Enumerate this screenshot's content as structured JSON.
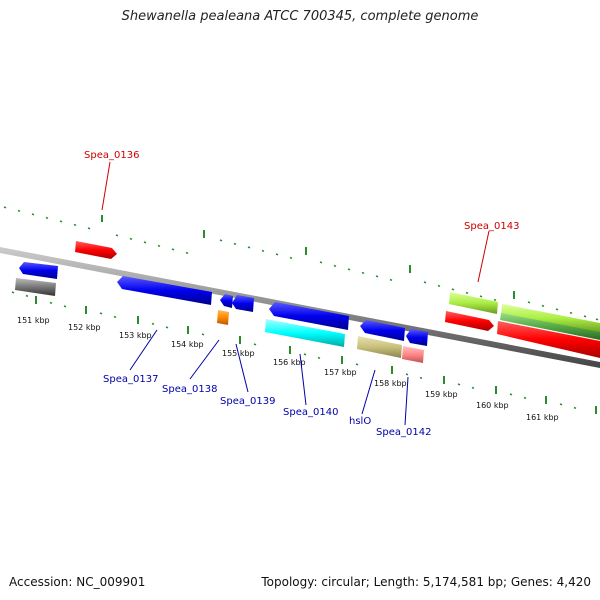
{
  "title": "Shewanella pealeana ATCC 700345, complete genome",
  "footer": {
    "accession": "Accession: NC_009901",
    "summary": "Topology: circular; Length: 5,174,581 bp; Genes: 4,420"
  },
  "scale_ticks": [
    "151 kbp",
    "152 kbp",
    "153 kbp",
    "154 kbp",
    "155 kbp",
    "156 kbp",
    "157 kbp",
    "158 kbp",
    "159 kbp",
    "160 kbp",
    "161 kbp"
  ],
  "gene_labels": {
    "top": [
      "Spea_0136",
      "Spea_0143"
    ],
    "bottom": [
      "Spea_0137",
      "Spea_0138",
      "Spea_0139",
      "Spea_0140",
      "hslO",
      "Spea_0142"
    ]
  },
  "colors": {
    "axis": "#8c8c8c",
    "tick": "#2a8c2a",
    "top_label": "#cc0000",
    "bottom_label": "#0000aa",
    "red": "#ff0000",
    "blue": "#0000ee",
    "gray": "#777777",
    "orange": "#ff8800",
    "cyan": "#00ffff",
    "khaki": "#c8c07a",
    "pink": "#ff8888",
    "lime": "#aaee44",
    "green": "#55aa44"
  }
}
